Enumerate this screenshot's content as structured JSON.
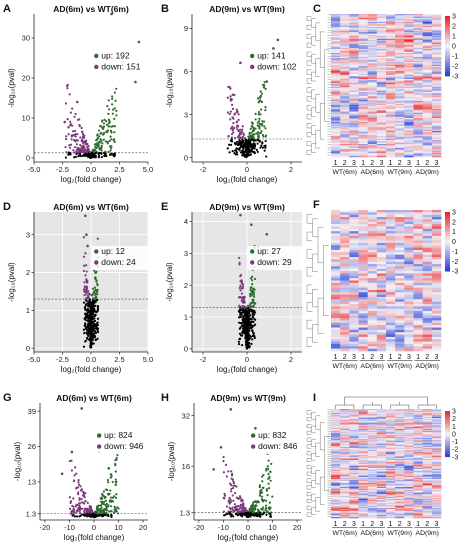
{
  "colors": {
    "up": "#2e6b2e",
    "down": "#7a3a7a",
    "ns": "#000000",
    "plot_bg": "#e6e6e6",
    "heat_low": "#2a3fd6",
    "heat_mid": "#f4f2f6",
    "heat_high": "#e8252a"
  },
  "chart_data": [
    {
      "type": "scatter",
      "panel_label": "A",
      "title": "AD(6m) vs WT(6m)",
      "background": "white",
      "xlabel": "log₂(fold change)",
      "ylabel": "-log₁₀(pval)",
      "xlim": [
        -5,
        5
      ],
      "ylim": [
        -1,
        36
      ],
      "xticks": [
        -5,
        -2.5,
        0,
        2.5,
        5
      ],
      "xtick_labels": [
        "-5.0",
        "-2.5",
        "0.0",
        "2.5",
        "5.0"
      ],
      "yticks": [
        0,
        10,
        20,
        30
      ],
      "ytick_labels": [
        "0",
        "10",
        "20",
        "30"
      ],
      "threshold_y": 1.3,
      "legend_position": "right",
      "series": [
        {
          "name": "up",
          "count": "192"
        },
        {
          "name": "down",
          "count": "151"
        }
      ],
      "outliers_up": [
        [
          1.8,
          36
        ],
        [
          4.2,
          29
        ],
        [
          3.9,
          19
        ],
        [
          2.8,
          24
        ]
      ],
      "outliers_down": [
        [
          -1.2,
          14
        ],
        [
          -2.3,
          9
        ]
      ],
      "spread": 1.8
    },
    {
      "type": "scatter",
      "panel_label": "B",
      "title": "AD(9m) vs WT(9m)",
      "background": "white",
      "xlabel": "log₂(fold change)",
      "ylabel": "-log₁₀(pval)",
      "xlim": [
        -2.5,
        2.5
      ],
      "ylim": [
        -0.3,
        10
      ],
      "xticks": [
        -2,
        0,
        2
      ],
      "xtick_labels": [
        "-2",
        "0",
        "2"
      ],
      "yticks": [
        0,
        3,
        6,
        9
      ],
      "ytick_labels": [
        "0",
        "3",
        "6",
        "9"
      ],
      "threshold_y": 1.3,
      "legend_position": "right",
      "series": [
        {
          "name": "up",
          "count": "141"
        },
        {
          "name": "down",
          "count": "102"
        }
      ],
      "outliers_up": [
        [
          1.4,
          8.2
        ],
        [
          1.2,
          7.6
        ],
        [
          0.9,
          5.3
        ]
      ],
      "outliers_down": [
        [
          -0.3,
          6.6
        ]
      ],
      "spread": 0.7
    },
    {
      "type": "scatter",
      "panel_label": "D",
      "title": "AD(6m) vs WT(6m)",
      "background": "gray",
      "xlabel": "log₂(fold change)",
      "ylabel": "-log₁₀(pval)",
      "xlim": [
        -5,
        5
      ],
      "ylim": [
        -0.1,
        3.6
      ],
      "xticks": [
        -5,
        -2.5,
        0,
        2.5,
        5
      ],
      "xtick_labels": [
        "-5.0",
        "-2.5",
        "0.0",
        "2.5",
        "5.0"
      ],
      "yticks": [
        0,
        1,
        2,
        3
      ],
      "ytick_labels": [
        "0",
        "1",
        "2",
        "3"
      ],
      "threshold_y": 1.3,
      "legend_position": "right",
      "series": [
        {
          "name": "up",
          "count": "12"
        },
        {
          "name": "down",
          "count": "24"
        }
      ],
      "outliers_up": [
        [
          0.6,
          2.4
        ],
        [
          0.4,
          2.0
        ]
      ],
      "outliers_down": [
        [
          -0.5,
          3.5
        ],
        [
          -0.4,
          3.0
        ],
        [
          -0.3,
          2.7
        ]
      ],
      "spread": 0.5
    },
    {
      "type": "scatter",
      "panel_label": "E",
      "title": "AD(9m) vs WT(9m)",
      "background": "gray",
      "xlabel": "log₂(fold change)",
      "ylabel": "-log₁₀(pval)",
      "xlim": [
        -2.5,
        2.5
      ],
      "ylim": [
        -0.1,
        4.3
      ],
      "xticks": [
        -2,
        0,
        2
      ],
      "xtick_labels": [
        "-2",
        "0",
        "2"
      ],
      "yticks": [
        0,
        1,
        2,
        3,
        4
      ],
      "ytick_labels": [
        "0",
        "1",
        "2",
        "3",
        "4"
      ],
      "threshold_y": 1.3,
      "legend_position": "right",
      "series": [
        {
          "name": "up",
          "count": "27"
        },
        {
          "name": "down",
          "count": "29"
        }
      ],
      "outliers_up": [
        [
          0.9,
          3.6
        ],
        [
          0.5,
          3.2
        ]
      ],
      "outliers_down": [
        [
          -0.3,
          4.2
        ],
        [
          0.2,
          3.9
        ]
      ],
      "spread": 0.3
    },
    {
      "type": "scatter",
      "panel_label": "G",
      "title": "AD(6m) vs WT(6m)",
      "background": "white",
      "xlabel": "log₂(fold change)",
      "ylabel": "-log₁₀(pval)",
      "xlim": [
        -22,
        22
      ],
      "ylim": [
        -1,
        42
      ],
      "xticks": [
        -20,
        -10,
        0,
        10,
        20
      ],
      "xtick_labels": [
        "-20",
        "-10",
        "0",
        "10",
        "20"
      ],
      "yticks": [
        1.3,
        13,
        26,
        39
      ],
      "ytick_labels": [
        "1.3",
        "13",
        "26",
        "39"
      ],
      "threshold_y": 1.3,
      "legend_position": "right",
      "series": [
        {
          "name": "up",
          "count": "824"
        },
        {
          "name": "down",
          "count": "946"
        }
      ],
      "outliers_up": [
        [
          2,
          24
        ],
        [
          6,
          18
        ],
        [
          9,
          13
        ]
      ],
      "outliers_down": [
        [
          -5,
          40
        ],
        [
          -9,
          24
        ],
        [
          -13,
          16
        ]
      ],
      "spread": 8
    },
    {
      "type": "scatter",
      "panel_label": "H",
      "title": "AD(9m) vs WT(9m)",
      "background": "white",
      "xlabel": "log₂(fold change)",
      "ylabel": "-log₁₀(pval)",
      "xlim": [
        -22,
        22
      ],
      "ylim": [
        -1,
        36
      ],
      "xticks": [
        -20,
        -10,
        0,
        10,
        20
      ],
      "xtick_labels": [
        "-20",
        "-10",
        "0",
        "10",
        "20"
      ],
      "yticks": [
        1.3,
        16,
        32
      ],
      "ytick_labels": [
        "1.3",
        "16",
        "32"
      ],
      "threshold_y": 1.3,
      "legend_position": "right",
      "series": [
        {
          "name": "up",
          "count": "832"
        },
        {
          "name": "down",
          "count": "846"
        }
      ],
      "outliers_up": [
        [
          3,
          28
        ],
        [
          8,
          20
        ]
      ],
      "outliers_down": [
        [
          -7,
          34
        ],
        [
          -11,
          22
        ],
        [
          -14,
          15
        ]
      ],
      "spread": 8
    },
    {
      "type": "heatmap",
      "panel_label": "C",
      "rows": 110,
      "seed": 11,
      "dendro_style": "dense",
      "color_scale": {
        "min": -3,
        "max": 3,
        "ticks": [
          "3",
          "2",
          "1",
          "0",
          "-1",
          "-2",
          "-3"
        ]
      },
      "group_labels": [
        "WT(6m)",
        "AD(6m)",
        "WT(9m)",
        "AD(9m)"
      ],
      "replicate_labels": [
        "1",
        "2",
        "3"
      ]
    },
    {
      "type": "heatmap",
      "panel_label": "F",
      "rows": 60,
      "seed": 29,
      "dendro_style": "sparse",
      "color_scale": {
        "min": -3,
        "max": 3,
        "ticks": [
          "3",
          "2",
          "1",
          "0",
          "-1",
          "-2",
          "-3"
        ]
      },
      "group_labels": [
        "WT(6m)",
        "AD(6m)",
        "WT(9m)",
        "AD(9m)"
      ],
      "replicate_labels": [
        "1",
        "2",
        "3"
      ]
    },
    {
      "type": "heatmap",
      "panel_label": "I",
      "rows": 120,
      "seed": 47,
      "dendro_style": "dense",
      "column_dendrogram": true,
      "color_scale": {
        "min": -3,
        "max": 3,
        "ticks": [
          "3",
          "2",
          "1",
          "0",
          "-1",
          "-2",
          "-3"
        ]
      },
      "group_labels": [
        "WT(6m)",
        "AD(6m)",
        "WT(9m)",
        "AD(9m)"
      ],
      "replicate_labels": [
        "1",
        "2",
        "3"
      ]
    }
  ]
}
